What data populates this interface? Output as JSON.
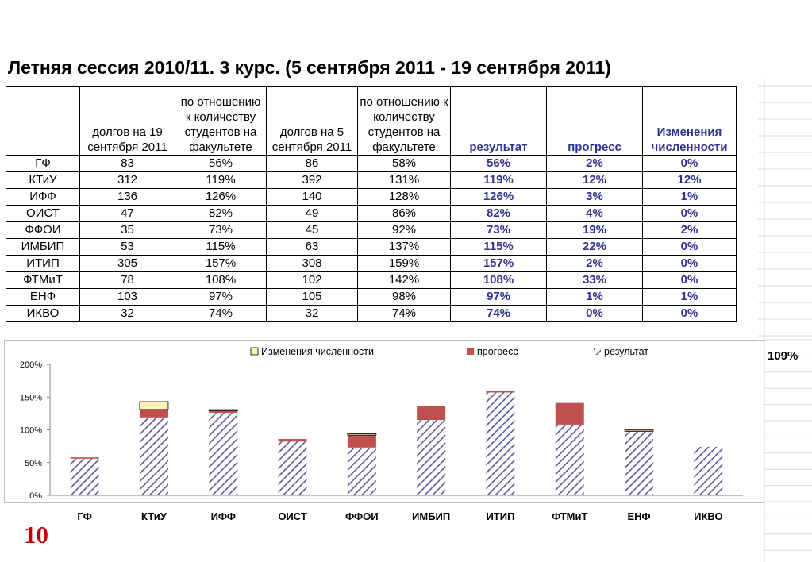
{
  "title": "Летняя сессия 2010/11. 3 курс.  (5 сентября  2011  -  19 сентября 2011)",
  "table": {
    "headers": [
      "",
      "долгов на 19 сентября 2011",
      "по отношению к количеству студентов на факультете",
      "долгов на 5 сентября 2011",
      "по отношению к количеству студентов на факультете",
      "результат",
      "прогресс",
      "Изменения численности"
    ],
    "rows": [
      [
        "ГФ",
        "83",
        "56%",
        "86",
        "58%",
        "56%",
        "2%",
        "0%"
      ],
      [
        "КТиУ",
        "312",
        "119%",
        "392",
        "131%",
        "119%",
        "12%",
        "12%"
      ],
      [
        "ИФФ",
        "136",
        "126%",
        "140",
        "128%",
        "126%",
        "3%",
        "1%"
      ],
      [
        "ОИСТ",
        "47",
        "82%",
        "49",
        "86%",
        "82%",
        "4%",
        "0%"
      ],
      [
        "ФФОИ",
        "35",
        "73%",
        "45",
        "92%",
        "73%",
        "19%",
        "2%"
      ],
      [
        "ИМБИП",
        "53",
        "115%",
        "63",
        "137%",
        "115%",
        "22%",
        "0%"
      ],
      [
        "ИТИП",
        "305",
        "157%",
        "308",
        "159%",
        "157%",
        "2%",
        "0%"
      ],
      [
        "ФТМиТ",
        "78",
        "108%",
        "102",
        "142%",
        "108%",
        "33%",
        "0%"
      ],
      [
        "ЕНФ",
        "103",
        "97%",
        "105",
        "98%",
        "97%",
        "1%",
        "1%"
      ],
      [
        "ИКВО",
        "32",
        "74%",
        "32",
        "74%",
        "74%",
        "0%",
        "0%"
      ]
    ]
  },
  "side_value": "109%",
  "page_number": "10",
  "colors": {
    "result": "#5b5b9e",
    "progress": "#c0504d",
    "change": "#fff2b3",
    "blue_text": "#2e3192"
  },
  "chart_data": {
    "type": "bar",
    "stacked": true,
    "categories": [
      "ГФ",
      "КТиУ",
      "ИФФ",
      "ОИСТ",
      "ФФОИ",
      "ИМБИП",
      "ИТИП",
      "ФТМиТ",
      "ЕНФ",
      "ИКВО"
    ],
    "series": [
      {
        "name": "результат",
        "values": [
          56,
          119,
          126,
          82,
          73,
          115,
          157,
          108,
          97,
          74
        ]
      },
      {
        "name": "прогресс",
        "values": [
          2,
          12,
          3,
          4,
          19,
          22,
          2,
          33,
          1,
          0
        ]
      },
      {
        "name": "Изменения численности",
        "values": [
          0,
          12,
          1,
          0,
          2,
          0,
          0,
          0,
          1,
          0
        ]
      }
    ],
    "ylim": [
      0,
      200
    ],
    "yticks": [
      "0%",
      "50%",
      "100%",
      "150%",
      "200%"
    ],
    "ytick_values": [
      0,
      50,
      100,
      150,
      200
    ],
    "legend_position": "top",
    "legend": [
      "Изменения численности",
      "прогресс",
      "результат"
    ],
    "grid": false
  }
}
